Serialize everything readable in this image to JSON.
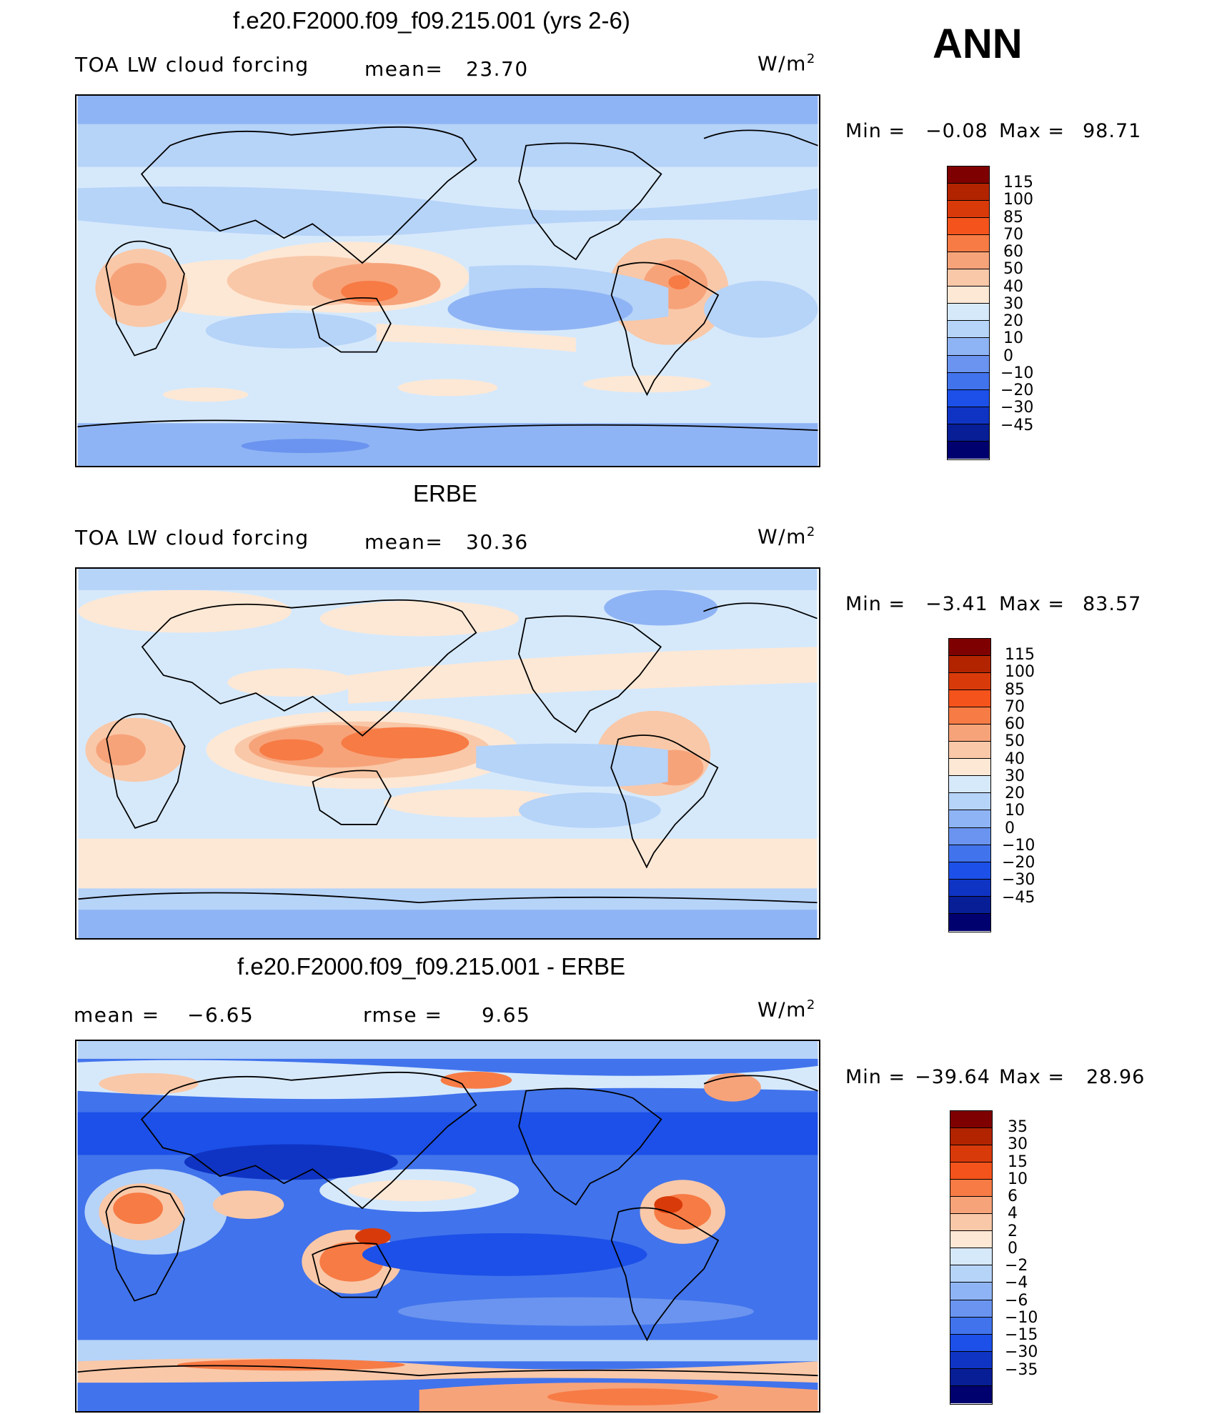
{
  "season": "ANN",
  "panels": [
    {
      "title": "f.e20.F2000.f09_f09.215.001 (yrs 2-6)",
      "left_text": "TOA LW cloud forcing",
      "mid_label": "mean=",
      "mid_value": "23.70",
      "units": "W/m",
      "units_sup": "2",
      "min_label": "Min =",
      "min_value": "−0.08",
      "max_label": "Max =",
      "max_value": "98.71"
    },
    {
      "title": "ERBE",
      "left_text": "TOA LW cloud forcing",
      "mid_label": "mean=",
      "mid_value": "30.36",
      "units": "W/m",
      "units_sup": "2",
      "min_label": "Min =",
      "min_value": "−3.41",
      "max_label": "Max =",
      "max_value": "83.57"
    },
    {
      "title": "f.e20.F2000.f09_f09.215.001 - ERBE",
      "left_label": "mean =",
      "left_value": "−6.65",
      "mid_label": "rmse =",
      "mid_value": "9.65",
      "units": "W/m",
      "units_sup": "2",
      "min_label": "Min =",
      "min_value": "−39.64",
      "max_label": "Max =",
      "max_value": "28.96"
    }
  ],
  "colorbars": {
    "abs": {
      "colors": [
        "#7f0000",
        "#b22400",
        "#d93a0a",
        "#f4531c",
        "#f77b45",
        "#f7a37a",
        "#f9c8a8",
        "#fde8d5",
        "#d6e9fb",
        "#b6d3f8",
        "#8fb4f5",
        "#6a94ef",
        "#4173ec",
        "#1c50e8",
        "#0f34c4",
        "#081e96",
        "#00006e"
      ],
      "labels": [
        "115",
        "100",
        "85",
        "70",
        "60",
        "50",
        "40",
        "30",
        "20",
        "10",
        "0",
        "−10",
        "−20",
        "−30",
        "−45"
      ]
    },
    "diff": {
      "colors": [
        "#7f0000",
        "#b22400",
        "#d93a0a",
        "#f4531c",
        "#f77b45",
        "#f7a37a",
        "#f9c8a8",
        "#fde8d5",
        "#d6e9fb",
        "#b6d3f8",
        "#8fb4f5",
        "#6a94ef",
        "#4173ec",
        "#1c50e8",
        "#0f34c4",
        "#081e96",
        "#00006e"
      ],
      "labels": [
        "35",
        "30",
        "15",
        "10",
        "6",
        "4",
        "2",
        "0",
        "−2",
        "−4",
        "−6",
        "−10",
        "−15",
        "−30",
        "−35"
      ]
    }
  },
  "chart_data": [
    {
      "type": "heatmap",
      "title": "f.e20.F2000.f09_f09.215.001 (yrs 2-6)",
      "variable": "TOA LW cloud forcing",
      "units": "W/m2",
      "mean": 23.7,
      "min": -0.08,
      "max": 98.71,
      "contour_levels": [
        -45,
        -30,
        -20,
        -10,
        0,
        10,
        20,
        30,
        40,
        50,
        60,
        70,
        85,
        100,
        115
      ]
    },
    {
      "type": "heatmap",
      "title": "ERBE",
      "variable": "TOA LW cloud forcing",
      "units": "W/m2",
      "mean": 30.36,
      "min": -3.41,
      "max": 83.57,
      "contour_levels": [
        -45,
        -30,
        -20,
        -10,
        0,
        10,
        20,
        30,
        40,
        50,
        60,
        70,
        85,
        100,
        115
      ]
    },
    {
      "type": "heatmap",
      "title": "f.e20.F2000.f09_f09.215.001 - ERBE",
      "units": "W/m2",
      "mean": -6.65,
      "rmse": 9.65,
      "min": -39.64,
      "max": 28.96,
      "contour_levels": [
        -35,
        -30,
        -15,
        -10,
        -6,
        -4,
        -2,
        0,
        2,
        4,
        6,
        10,
        15,
        30,
        35
      ]
    }
  ]
}
